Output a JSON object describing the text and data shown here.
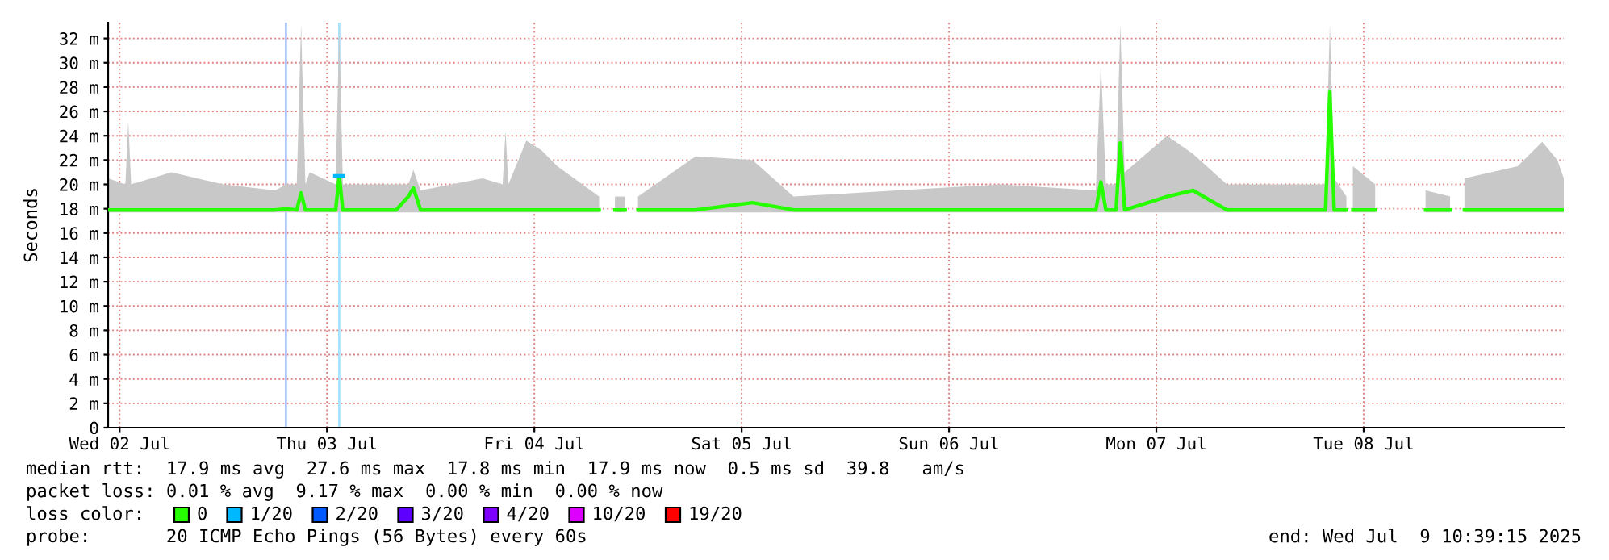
{
  "chart_data": {
    "type": "line",
    "ylabel": "Seconds",
    "legend_title": "loss color:",
    "legend": "bottom",
    "grid": true,
    "marker": "none",
    "line_style": "solid",
    "annotations": [
      "median rtt:  17.9 ms avg  27.6 ms max  17.8 ms min  17.9 ms now  0.5 ms sd  39.8   am/s",
      "packet loss: 0.01 % avg  9.17 % max  0.00 % min  0.00 % now",
      "probe:       20 ICMP Echo Pings (56 Bytes) every 60s",
      "end: Wed Jul  9 10:39:15 2025"
    ],
    "xlim": [
      "2025-07-01T22:40",
      "2025-07-08T23:10"
    ],
    "xticks": [
      {
        "value": "2025-07-02",
        "label": "Wed 02 Jul"
      },
      {
        "value": "2025-07-03",
        "label": "Thu 03 Jul"
      },
      {
        "value": "2025-07-04",
        "label": "Fri 04 Jul"
      },
      {
        "value": "2025-07-05",
        "label": "Sat 05 Jul"
      },
      {
        "value": "2025-07-06",
        "label": "Sun 06 Jul"
      },
      {
        "value": "2025-07-07",
        "label": "Mon 07 Jul"
      },
      {
        "value": "2025-07-08",
        "label": "Tue 08 Jul"
      }
    ],
    "ylim": [
      0,
      33.3
    ],
    "yticks": [
      0,
      {
        "value": 2,
        "label": "2 m"
      },
      {
        "value": 4,
        "label": "4 m"
      },
      {
        "value": 6,
        "label": "6 m"
      },
      {
        "value": 8,
        "label": "8 m"
      },
      {
        "value": 10,
        "label": "10 m"
      },
      {
        "value": 12,
        "label": "12 m"
      },
      {
        "value": 14,
        "label": "14 m"
      },
      {
        "value": 16,
        "label": "16 m"
      },
      {
        "value": 18,
        "label": "18 m"
      },
      {
        "value": 20,
        "label": "20 m"
      },
      {
        "value": 22,
        "label": "22 m"
      },
      {
        "value": 24,
        "label": "24 m"
      },
      {
        "value": 26,
        "label": "26 m"
      },
      {
        "value": 28,
        "label": "28 m"
      },
      {
        "value": 30,
        "label": "30 m"
      },
      {
        "value": 32,
        "label": "32 m"
      }
    ],
    "ref_lines": [
      {
        "axis": "x",
        "value": "2025-07-02T19:15",
        "color": "#aac8ff"
      },
      {
        "axis": "x",
        "value": "2025-07-03T01:25",
        "color": "#a8e4ff"
      }
    ],
    "series": [
      {
        "name": "0",
        "color": "#26ff00",
        "x": [
          "2025-07-01T22:40",
          "2025-07-02T00:40",
          "2025-07-02T01:00",
          "2025-07-02T01:20",
          "2025-07-02T06:00",
          "2025-07-02T12:00",
          "2025-07-02T18:00",
          "2025-07-02T19:15",
          "2025-07-02T20:30",
          "2025-07-02T21:00",
          "2025-07-02T21:30",
          "2025-07-02T22:00",
          "2025-07-03T01:00",
          "2025-07-03T01:25",
          "2025-07-03T01:50",
          "2025-07-03T08:00",
          "2025-07-03T09:25",
          "2025-07-03T10:00",
          "2025-07-03T10:50",
          "2025-07-03T18:00",
          "2025-07-03T20:20",
          "2025-07-03T20:40",
          "2025-07-03T21:00",
          "2025-07-03T23:05",
          "2025-07-04T00:50",
          "2025-07-04T02:40",
          "2025-07-04T07:30",
          "2025-07-04T08:15",
          "2025-07-04T09:20",
          "2025-07-04T10:30",
          "2025-07-04T11:00",
          "2025-07-04T12:00",
          "2025-07-04T18:40",
          "2025-07-05T01:15",
          "2025-07-05T06:00",
          "2025-07-05T18:00",
          "2025-07-06T06:00",
          "2025-07-06T17:00",
          "2025-07-06T17:35",
          "2025-07-06T18:10",
          "2025-07-06T19:20",
          "2025-07-06T19:50",
          "2025-07-06T20:20",
          "2025-07-07T01:15",
          "2025-07-07T04:15",
          "2025-07-07T08:10",
          "2025-07-07T17:50",
          "2025-07-07T19:35",
          "2025-07-07T20:05",
          "2025-07-07T20:35",
          "2025-07-07T22:00",
          "2025-07-07T22:25",
          "2025-07-07T22:45",
          "2025-07-08T01:20",
          "2025-07-08T02:50",
          "2025-07-08T07:10",
          "2025-07-08T10:00",
          "2025-07-08T10:35",
          "2025-07-08T11:40",
          "2025-07-08T17:50",
          "2025-07-08T20:40",
          "2025-07-08T22:25",
          "2025-07-08T23:10"
        ],
        "values": [
          17.9,
          17.9,
          17.9,
          17.9,
          17.9,
          17.9,
          17.9,
          18.0,
          17.9,
          19.3,
          17.9,
          17.9,
          17.9,
          20.7,
          17.9,
          17.9,
          19.0,
          19.7,
          17.9,
          17.9,
          17.9,
          17.9,
          17.9,
          17.9,
          17.9,
          17.9,
          17.9,
          null,
          17.9,
          17.9,
          null,
          17.9,
          17.9,
          18.5,
          17.9,
          17.9,
          17.9,
          17.9,
          20.2,
          17.9,
          17.9,
          23.4,
          17.9,
          19.0,
          19.5,
          17.9,
          17.9,
          17.9,
          27.6,
          17.9,
          17.9,
          null,
          17.9,
          17.9,
          null,
          17.9,
          17.9,
          null,
          17.9,
          17.9,
          17.9,
          17.9,
          17.9
        ],
        "lower": [
          17.7,
          17.7,
          17.7,
          17.7,
          17.7,
          17.7,
          17.7,
          17.7,
          17.7,
          17.7,
          17.7,
          17.7,
          17.7,
          17.7,
          17.7,
          17.7,
          17.7,
          17.7,
          17.7,
          17.7,
          17.7,
          17.7,
          17.7,
          17.7,
          17.7,
          17.7,
          17.7,
          null,
          17.7,
          17.7,
          null,
          17.7,
          17.7,
          17.7,
          17.7,
          17.7,
          17.7,
          17.7,
          17.7,
          17.7,
          17.7,
          17.7,
          17.7,
          17.7,
          17.7,
          17.7,
          17.7,
          17.7,
          17.7,
          17.7,
          17.7,
          null,
          17.7,
          17.7,
          null,
          17.7,
          17.7,
          null,
          17.7,
          17.7,
          17.7,
          17.7,
          17.7
        ],
        "upper": [
          20.5,
          20.0,
          25.2,
          20.0,
          21.0,
          20.0,
          19.5,
          20.0,
          20.0,
          33.2,
          20.0,
          21.0,
          20.0,
          33.2,
          20.0,
          20.0,
          20.0,
          21.2,
          19.5,
          20.5,
          20.0,
          24.4,
          20.0,
          23.6,
          22.8,
          21.5,
          19.0,
          null,
          19.0,
          19.0,
          null,
          19.0,
          22.3,
          22.0,
          19.0,
          19.5,
          20.0,
          19.5,
          30.0,
          20.0,
          20.0,
          33.2,
          21.0,
          24.0,
          22.5,
          20.0,
          20.0,
          20.0,
          33.2,
          20.5,
          19.0,
          null,
          21.5,
          20.0,
          null,
          19.5,
          19.0,
          null,
          20.5,
          21.5,
          23.5,
          22.0,
          20.5
        ]
      },
      {
        "name": "1/20",
        "color": "#00b8ff",
        "x": [
          "2025-07-03T00:55",
          "2025-07-03T01:55"
        ],
        "values": [
          20.7,
          20.7
        ]
      },
      {
        "name": "2/20",
        "color": "#0059ff"
      },
      {
        "name": "3/20",
        "color": "#5e00ff"
      },
      {
        "name": "4/20",
        "color": "#7e00ff"
      },
      {
        "name": "10/20",
        "color": "#dd00ff"
      },
      {
        "name": "19/20",
        "color": "#ff0000"
      }
    ]
  }
}
